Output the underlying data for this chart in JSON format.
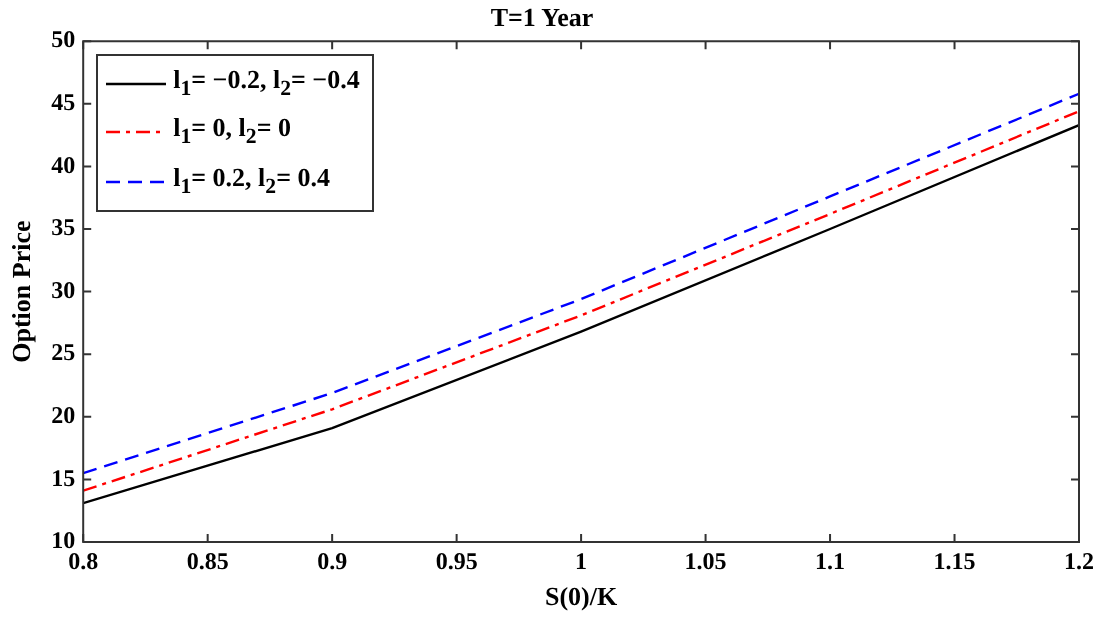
{
  "chart_data": {
    "type": "line",
    "title": "T=1 Year",
    "xlabel": "S(0)/K",
    "ylabel": "Option Price",
    "x": [
      0.8,
      0.9,
      1.0,
      1.1,
      1.2
    ],
    "series": [
      {
        "name": "l$_{1}$= −0.2, l$_{2}$= −0.4",
        "color": "#000000",
        "line_style": "solid",
        "values": [
          13.1,
          19.1,
          26.8,
          35.0,
          43.3
        ]
      },
      {
        "name": "l$_{1}$= 0, l$_{2}$= 0",
        "color": "#ff0000",
        "line_style": "dashdot",
        "values": [
          14.1,
          20.6,
          28.1,
          36.2,
          44.4
        ]
      },
      {
        "name": "l$_{1}$= 0.2, l$_{2}$= 0.4",
        "color": "#0000ff",
        "line_style": "dashed",
        "values": [
          15.5,
          21.9,
          29.4,
          37.6,
          45.8
        ]
      }
    ],
    "xlim": [
      0.8,
      1.2
    ],
    "xticks": [
      0.8,
      0.85,
      0.9,
      0.95,
      1,
      1.05,
      1.1,
      1.15,
      1.2
    ],
    "ylim": [
      10,
      50
    ],
    "yticks": [
      10,
      15,
      20,
      25,
      30,
      35,
      40,
      45,
      50
    ],
    "grid": false,
    "legend": "top left",
    "marker": "none"
  }
}
